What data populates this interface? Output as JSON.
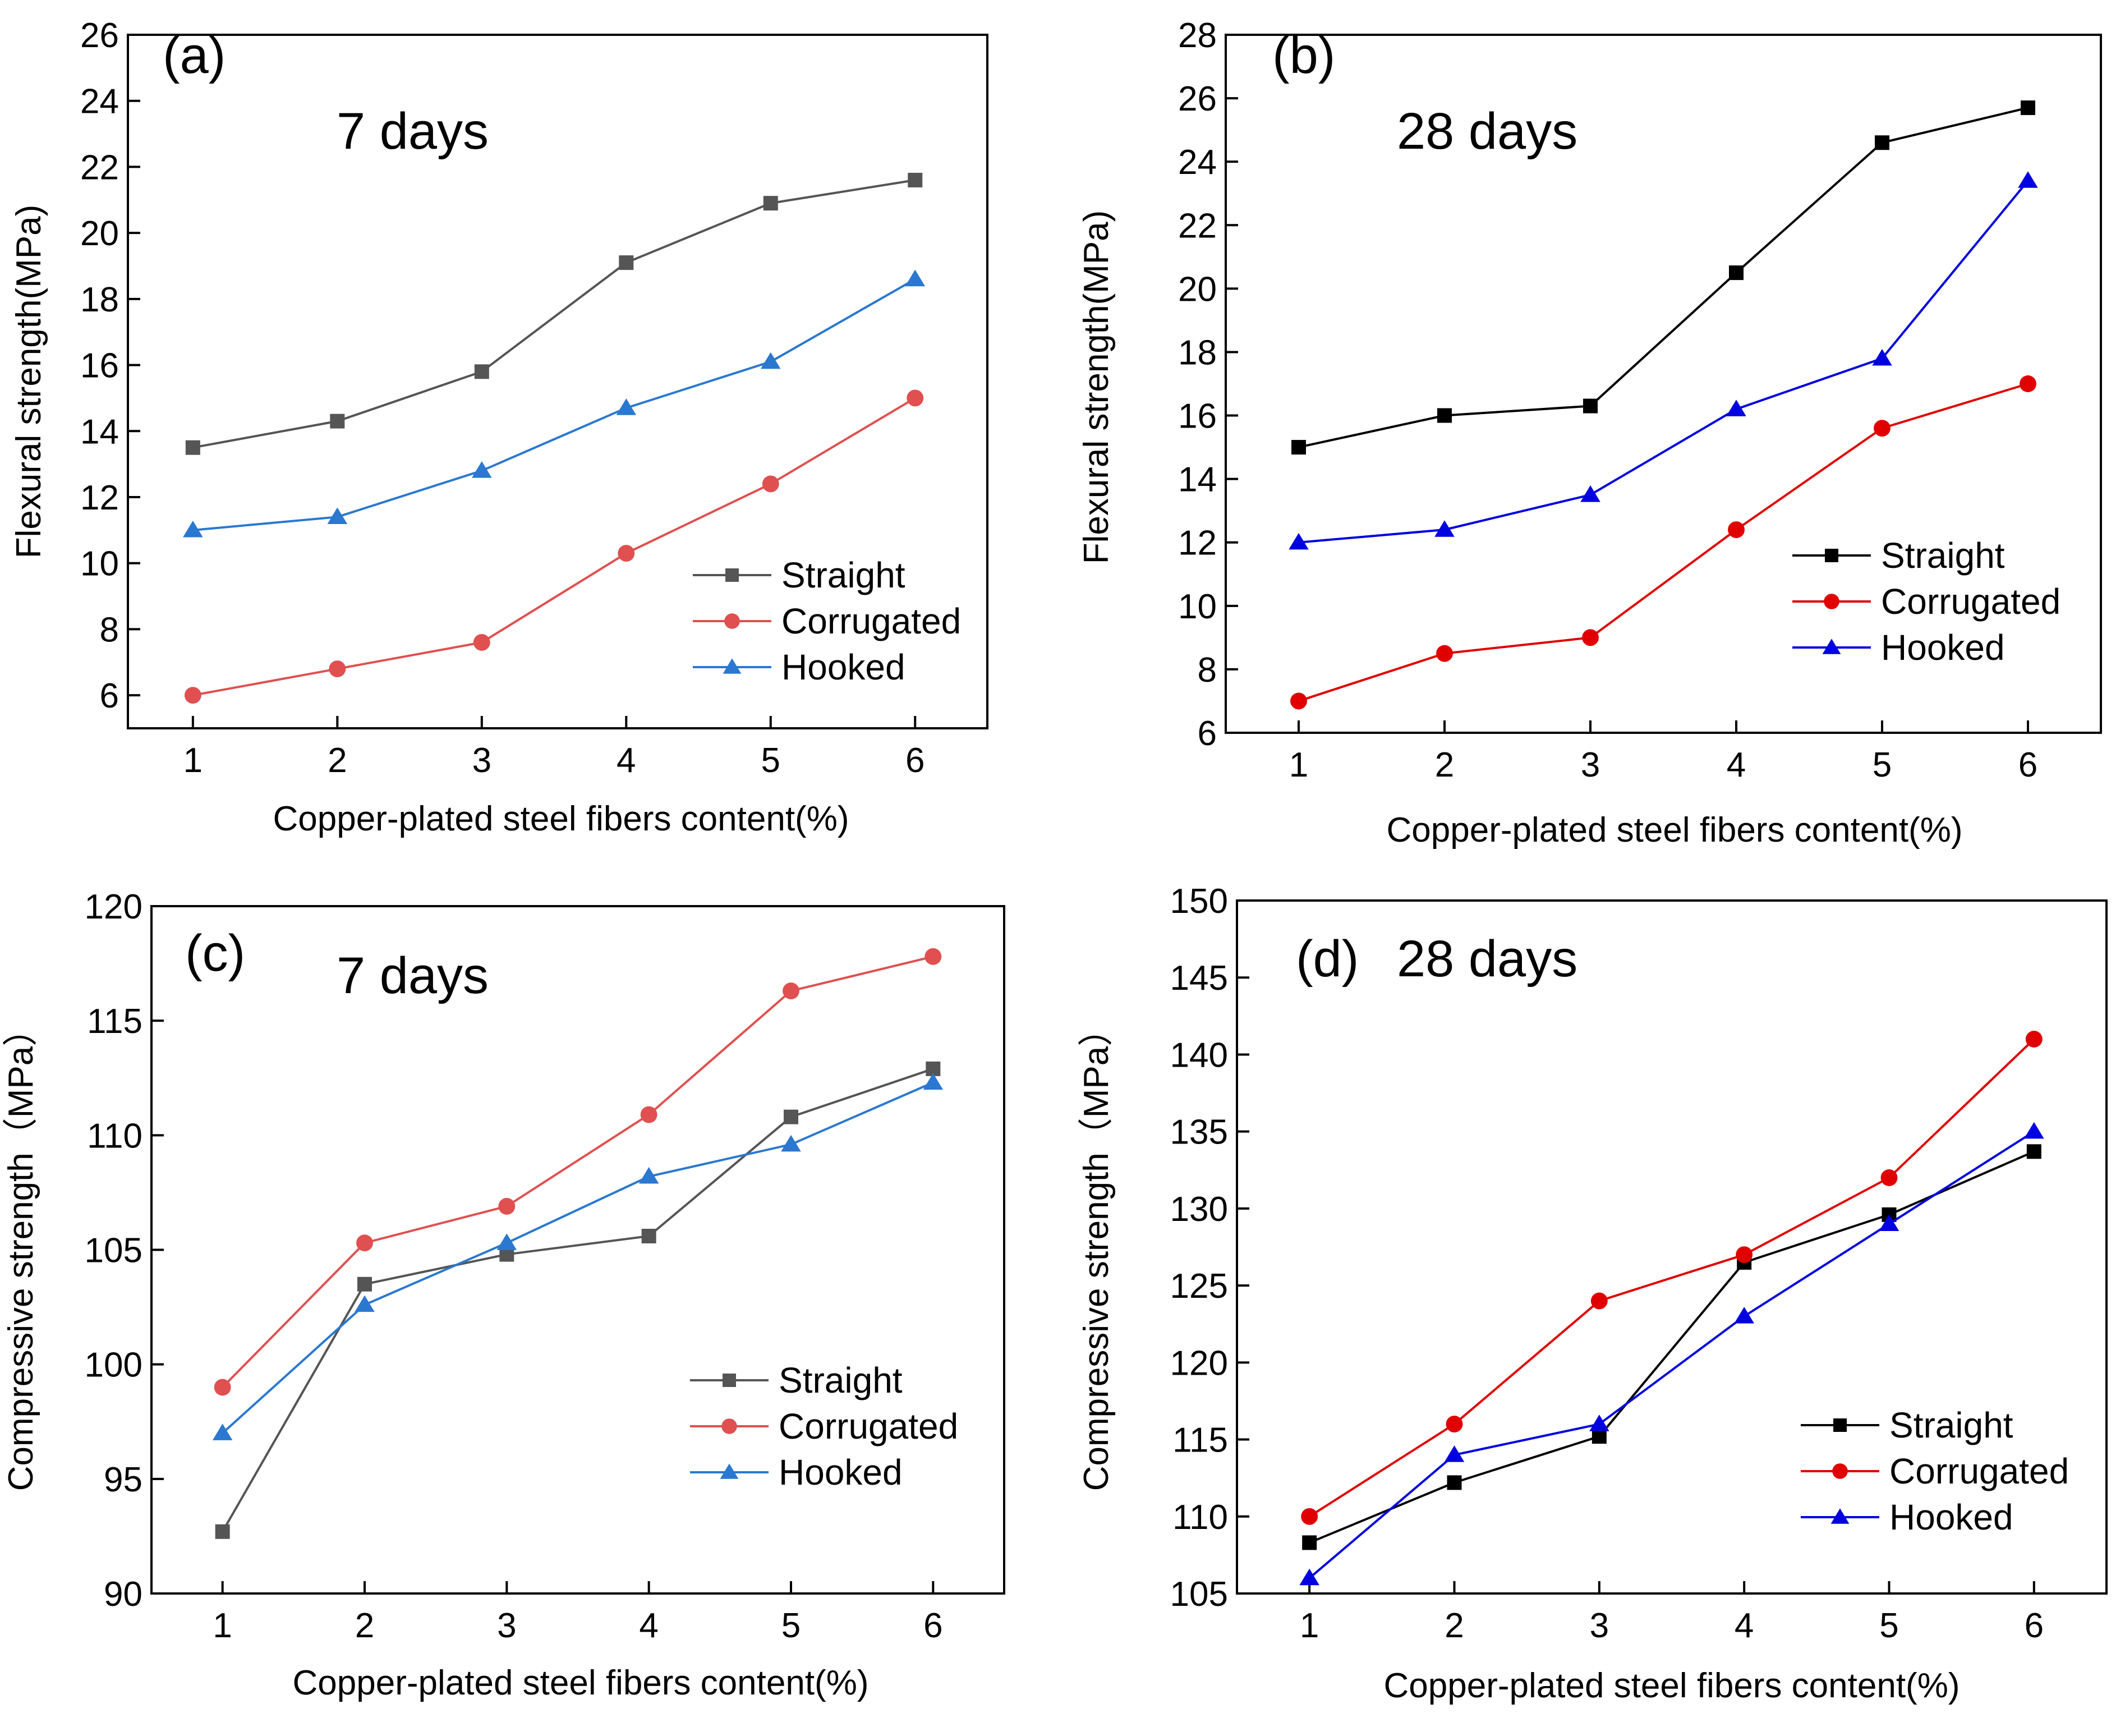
{
  "figure": {
    "chart_data": [
      {
        "type": "line",
        "panel_label": "(a)",
        "annotation": "7 days",
        "xlabel": "Copper-plated steel fibers content(%)",
        "ylabel": "Flexural strength(MPa)",
        "x": [
          1,
          2,
          3,
          4,
          5,
          6
        ],
        "xlim": [
          0.55,
          6.5
        ],
        "ylim": [
          5,
          26
        ],
        "yticks": [
          6,
          8,
          10,
          12,
          14,
          16,
          18,
          20,
          22,
          24,
          26
        ],
        "legend_position": "bottom-right",
        "series": [
          {
            "name": "Straight",
            "color": "#555555",
            "marker": "square",
            "values": [
              13.5,
              14.3,
              15.8,
              19.1,
              20.9,
              21.6
            ]
          },
          {
            "name": "Corrugated",
            "color": "#e05050",
            "marker": "circle",
            "values": [
              6.0,
              6.8,
              7.6,
              10.3,
              12.4,
              15.0
            ]
          },
          {
            "name": "Hooked",
            "color": "#2a78d0",
            "marker": "triangle",
            "values": [
              11.0,
              11.4,
              12.8,
              14.7,
              16.1,
              18.6
            ]
          }
        ]
      },
      {
        "type": "line",
        "panel_label": "(b)",
        "annotation": "28 days",
        "xlabel": "Copper-plated steel fibers content(%)",
        "ylabel": "Flexural strength(MPa)",
        "x": [
          1,
          2,
          3,
          4,
          5,
          6
        ],
        "xlim": [
          0.5,
          6.5
        ],
        "ylim": [
          6,
          28
        ],
        "yticks": [
          6,
          8,
          10,
          12,
          14,
          16,
          18,
          20,
          22,
          24,
          26,
          28
        ],
        "legend_position": "bottom-right",
        "series": [
          {
            "name": "Straight",
            "color": "#000000",
            "marker": "square",
            "values": [
              15.0,
              16.0,
              16.3,
              20.5,
              24.6,
              25.7
            ]
          },
          {
            "name": "Corrugated",
            "color": "#e00000",
            "marker": "circle",
            "values": [
              7.0,
              8.5,
              9.0,
              12.4,
              15.6,
              17.0
            ]
          },
          {
            "name": "Hooked",
            "color": "#0000e0",
            "marker": "triangle",
            "values": [
              12.0,
              12.4,
              13.5,
              16.2,
              17.8,
              23.4
            ]
          }
        ]
      },
      {
        "type": "line",
        "panel_label": "(c)",
        "annotation": "7 days",
        "xlabel": "Copper-plated steel fibers content(%)",
        "ylabel": "Compressive strength（MPa）",
        "x": [
          1,
          2,
          3,
          4,
          5,
          6
        ],
        "xlim": [
          0.5,
          6.5
        ],
        "ylim": [
          90,
          120
        ],
        "yticks": [
          90,
          95,
          100,
          105,
          110,
          115,
          120
        ],
        "legend_position": "bottom-right",
        "series": [
          {
            "name": "Straight",
            "color": "#555555",
            "marker": "square",
            "values": [
              92.7,
              103.5,
              104.8,
              105.6,
              110.8,
              112.9
            ]
          },
          {
            "name": "Corrugated",
            "color": "#e05050",
            "marker": "circle",
            "values": [
              99.0,
              105.3,
              106.9,
              110.9,
              116.3,
              117.8
            ]
          },
          {
            "name": "Hooked",
            "color": "#2a78d0",
            "marker": "triangle",
            "values": [
              97.0,
              102.6,
              105.3,
              108.2,
              109.6,
              112.3
            ]
          }
        ]
      },
      {
        "type": "line",
        "panel_label": "(d)",
        "annotation": "28 days",
        "xlabel": "Copper-plated steel fibers content(%)",
        "ylabel": "Compressive strength（MPa）",
        "x": [
          1,
          2,
          3,
          4,
          5,
          6
        ],
        "xlim": [
          0.5,
          6.5
        ],
        "ylim": [
          105,
          150
        ],
        "yticks": [
          105,
          110,
          115,
          120,
          125,
          130,
          135,
          140,
          145,
          150
        ],
        "legend_position": "bottom-right",
        "series": [
          {
            "name": "Straight",
            "color": "#000000",
            "marker": "square",
            "values": [
              108.3,
              112.2,
              115.2,
              126.5,
              129.6,
              133.7
            ]
          },
          {
            "name": "Corrugated",
            "color": "#e00000",
            "marker": "circle",
            "values": [
              110.0,
              116.0,
              124.0,
              127.0,
              132.0,
              141.0
            ]
          },
          {
            "name": "Hooked",
            "color": "#0000e0",
            "marker": "triangle",
            "values": [
              106.0,
              114.0,
              116.0,
              123.0,
              129.0,
              135.0
            ]
          }
        ]
      }
    ]
  }
}
